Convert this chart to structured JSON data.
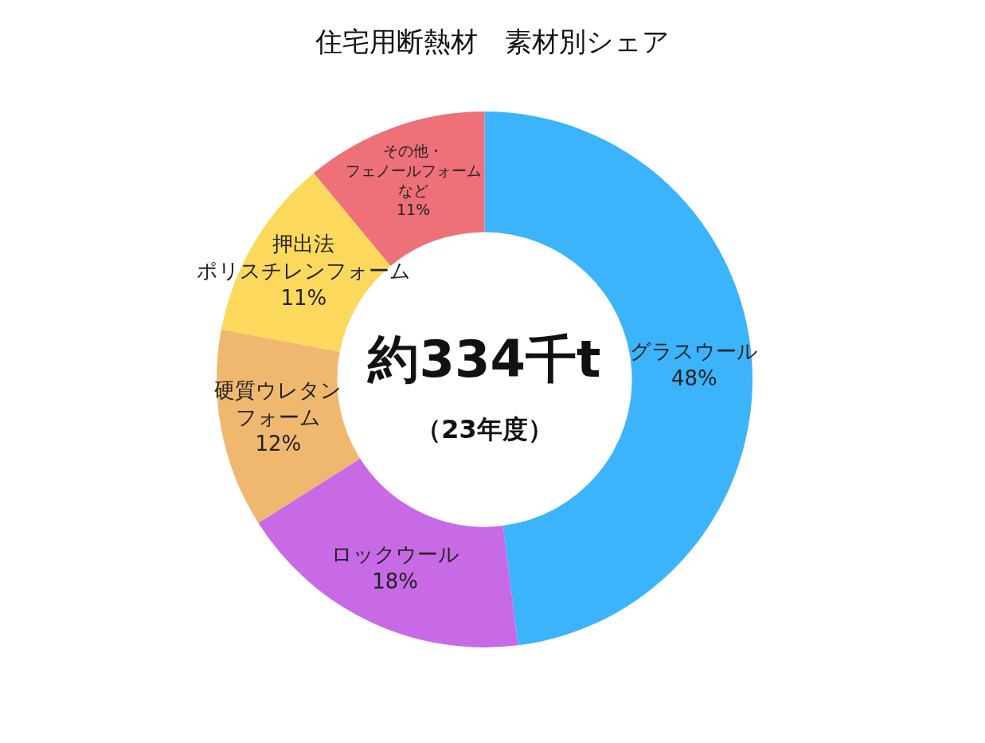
{
  "chart_data": {
    "type": "donut",
    "title": "住宅用断熱材　素材別シェア",
    "categories": [
      "グラスウール",
      "ロックウール",
      "硬質ウレタンフォーム",
      "押出法ポリスチレンフォーム",
      "その他・フェノールフォームなど"
    ],
    "values": [
      48,
      18,
      12,
      11,
      11
    ],
    "colors": [
      "#3bb4fb",
      "#c86ae6",
      "#f0b86e",
      "#fcd95c",
      "#ee7078"
    ],
    "value_labels": [
      "48%",
      "18%",
      "12%",
      "11%",
      "11%"
    ],
    "annotations": [
      "約334千t",
      "（23年度）"
    ],
    "legend": false
  }
}
